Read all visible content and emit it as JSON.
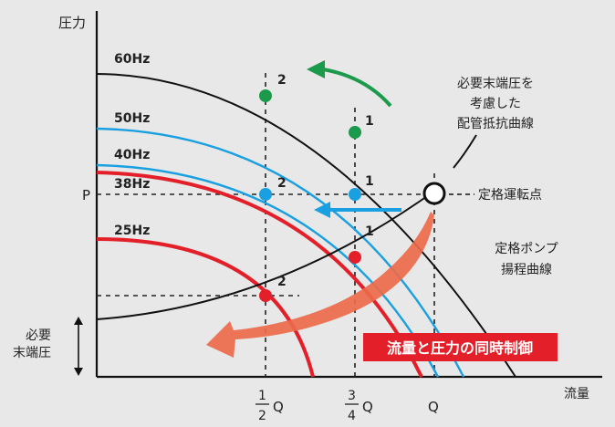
{
  "axes": {
    "y_label": "圧力",
    "x_label": "流量",
    "p_label": "P",
    "q_label": "Q",
    "half": {
      "num": "1",
      "den": "2",
      "unit": "Q"
    },
    "three_quarter": {
      "num": "3",
      "den": "4",
      "unit": "Q"
    },
    "min_pressure": [
      "必要",
      "末端圧"
    ]
  },
  "curves": {
    "hz60": "60Hz",
    "hz50": "50Hz",
    "hz40": "40Hz",
    "hz38": "38Hz",
    "hz25": "25Hz"
  },
  "annotations": {
    "resistance": [
      "必要末端圧を",
      "考慮した",
      "配管抵抗曲線"
    ],
    "rated_point": "定格運転点",
    "pump_curve": [
      "定格ポンプ",
      "揚程曲線"
    ],
    "control_banner": "流量と圧力の同時制御"
  },
  "points": {
    "g2": "2",
    "g1": "1",
    "b2": "2",
    "b1": "1",
    "r1": "1",
    "r2": "2"
  },
  "colors": {
    "green": "#1a9a4a",
    "blue": "#1aa0e0",
    "red": "#e3202a",
    "orange": "#ec6a4a",
    "black": "#111111"
  }
}
